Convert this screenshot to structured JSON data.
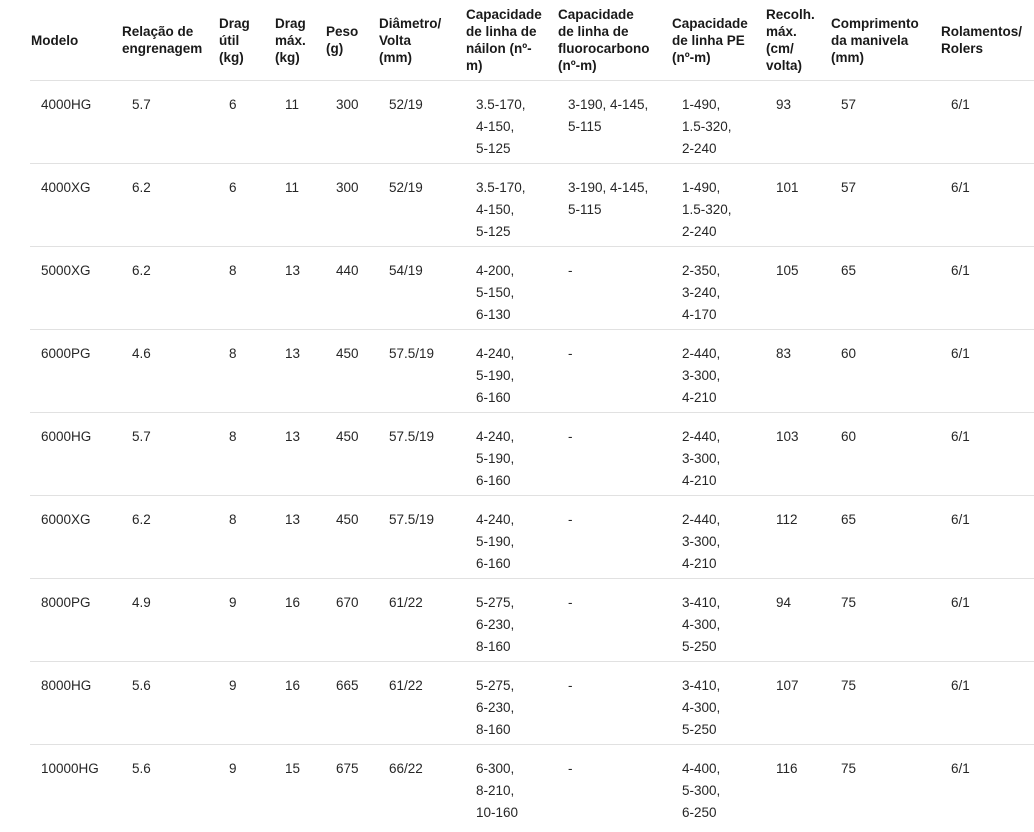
{
  "table": {
    "columns": [
      {
        "id": "model",
        "label": "Modelo"
      },
      {
        "id": "gear-ratio",
        "label": "Relação de\nengrenagem"
      },
      {
        "id": "drag-util",
        "label": "Drag\nútil\n(kg)"
      },
      {
        "id": "drag-max",
        "label": "Drag\nmáx.\n(kg)"
      },
      {
        "id": "weight",
        "label": "Peso\n(g)"
      },
      {
        "id": "diameter-per-turn",
        "label": "Diâmetro/\nVolta\n(mm)"
      },
      {
        "id": "nylon-line-capacity",
        "label": "Capacidade\nde linha de\nnáilon (nº-\nm)"
      },
      {
        "id": "fluorocarbon-line-capacity",
        "label": "Capacidade\nde linha de\nfluorocarbono\n(nº-m)"
      },
      {
        "id": "pe-line-capacity",
        "label": "Capacidade\nde linha PE\n(nº-m)"
      },
      {
        "id": "max-retrieve",
        "label": "Recolh.\nmáx.\n(cm/\nvolta)"
      },
      {
        "id": "handle-length",
        "label": "Comprimento\nda manivela\n(mm)"
      },
      {
        "id": "bearings",
        "label": "Rolamentos/\nRolers"
      }
    ],
    "rows": [
      {
        "cells": [
          "4000HG",
          "5.7",
          "6",
          "11",
          "300",
          "52/19",
          [
            "3.5-170,",
            "4-150,",
            "5-125"
          ],
          [
            "3-190, 4-145,",
            "5-115"
          ],
          [
            "1-490,",
            "1.5-320,",
            "2-240"
          ],
          "93",
          "57",
          "6/1"
        ]
      },
      {
        "cells": [
          "4000XG",
          "6.2",
          "6",
          "11",
          "300",
          "52/19",
          [
            "3.5-170,",
            "4-150,",
            "5-125"
          ],
          [
            "3-190, 4-145,",
            "5-115"
          ],
          [
            "1-490,",
            "1.5-320,",
            "2-240"
          ],
          "101",
          "57",
          "6/1"
        ]
      },
      {
        "cells": [
          "5000XG",
          "6.2",
          "8",
          "13",
          "440",
          "54/19",
          [
            "4-200,",
            "5-150,",
            "6-130"
          ],
          "-",
          [
            "2-350,",
            "3-240,",
            "4-170"
          ],
          "105",
          "65",
          "6/1"
        ]
      },
      {
        "cells": [
          "6000PG",
          "4.6",
          "8",
          "13",
          "450",
          "57.5/19",
          [
            "4-240,",
            "5-190,",
            "6-160"
          ],
          "-",
          [
            "2-440,",
            "3-300,",
            "4-210"
          ],
          "83",
          "60",
          "6/1"
        ]
      },
      {
        "cells": [
          "6000HG",
          "5.7",
          "8",
          "13",
          "450",
          "57.5/19",
          [
            "4-240,",
            "5-190,",
            "6-160"
          ],
          "-",
          [
            "2-440,",
            "3-300,",
            "4-210"
          ],
          "103",
          "60",
          "6/1"
        ]
      },
      {
        "cells": [
          "6000XG",
          "6.2",
          "8",
          "13",
          "450",
          "57.5/19",
          [
            "4-240,",
            "5-190,",
            "6-160"
          ],
          "-",
          [
            "2-440,",
            "3-300,",
            "4-210"
          ],
          "112",
          "65",
          "6/1"
        ]
      },
      {
        "cells": [
          "8000PG",
          "4.9",
          "9",
          "16",
          "670",
          "61/22",
          [
            "5-275,",
            "6-230,",
            "8-160"
          ],
          "-",
          [
            "3-410,",
            "4-300,",
            "5-250"
          ],
          "94",
          "75",
          "6/1"
        ]
      },
      {
        "cells": [
          "8000HG",
          "5.6",
          "9",
          "16",
          "665",
          "61/22",
          [
            "5-275,",
            "6-230,",
            "8-160"
          ],
          "-",
          [
            "3-410,",
            "4-300,",
            "5-250"
          ],
          "107",
          "75",
          "6/1"
        ]
      },
      {
        "cells": [
          "10000HG",
          "5.6",
          "9",
          "15",
          "675",
          "66/22",
          [
            "6-300,",
            "8-210,",
            "10-160"
          ],
          "-",
          [
            "4-400,",
            "5-300,",
            "6-250"
          ],
          "116",
          "75",
          "6/1"
        ]
      }
    ]
  },
  "colors": {
    "background": "#ffffff",
    "text": "#1f1f1f",
    "row_divider": "#e1e1e1"
  }
}
